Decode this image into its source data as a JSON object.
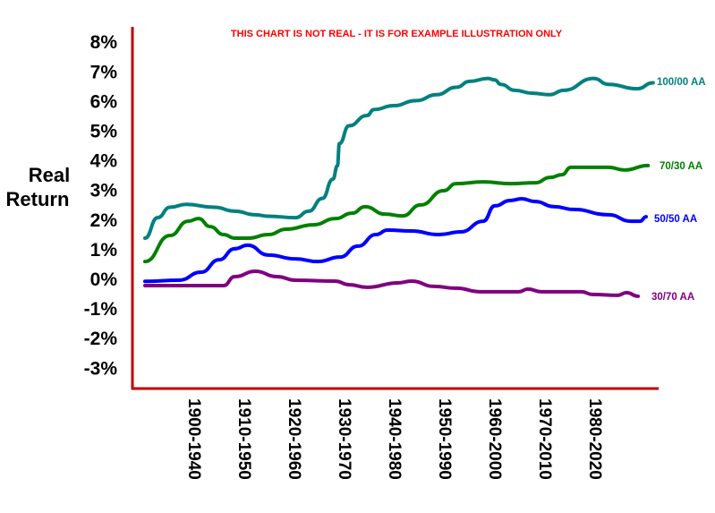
{
  "chart_data": {
    "type": "line",
    "title": "THIS CHART IS NOT REAL - IT IS FOR EXAMPLE ILLUSTRATION ONLY",
    "xlabel": "",
    "ylabel": "Real Return",
    "ylabel_lines": [
      "Real",
      "Return"
    ],
    "categories": [
      "1900-1940",
      "1910-1950",
      "1920-1960",
      "1930-1970",
      "1940-1980",
      "1950-1990",
      "1960-2000",
      "1970-2010",
      "1980-2020"
    ],
    "y_ticks": [
      "8%",
      "7%",
      "6%",
      "5%",
      "4%",
      "3%",
      "2%",
      "1%",
      "0%",
      "-1%",
      "-2%",
      "-3%"
    ],
    "ylim": [
      -3.8,
      8.3
    ],
    "grid": false,
    "legend": "inline-right",
    "axis_color": "#c00000",
    "series": [
      {
        "name": "100/00 AA",
        "color": "#008080",
        "points": [
          [
            -1,
            1.36
          ],
          [
            -0.75,
            2.05
          ],
          [
            -0.5,
            2.4
          ],
          [
            -0.18,
            2.5
          ],
          [
            0.39,
            2.4
          ],
          [
            0.79,
            2.27
          ],
          [
            1.2,
            2.15
          ],
          [
            1.46,
            2.1
          ],
          [
            2,
            2.05
          ],
          [
            2.27,
            2.27
          ],
          [
            2.54,
            2.7
          ],
          [
            2.75,
            3.35
          ],
          [
            2.84,
            3.8
          ],
          [
            2.88,
            4.55
          ],
          [
            3.07,
            5.15
          ],
          [
            3.43,
            5.5
          ],
          [
            3.57,
            5.7
          ],
          [
            3.96,
            5.83
          ],
          [
            4.41,
            6.0
          ],
          [
            4.82,
            6.2
          ],
          [
            5.21,
            6.45
          ],
          [
            5.48,
            6.65
          ],
          [
            5.84,
            6.75
          ],
          [
            5.98,
            6.7
          ],
          [
            6.1,
            6.55
          ],
          [
            6.38,
            6.35
          ],
          [
            6.73,
            6.25
          ],
          [
            7.07,
            6.2
          ],
          [
            7.36,
            6.35
          ],
          [
            7.95,
            6.75
          ],
          [
            8.25,
            6.55
          ],
          [
            8.82,
            6.4
          ],
          [
            9.14,
            6.6
          ]
        ]
      },
      {
        "name": "70/30 AA",
        "color": "#008000",
        "points": [
          [
            -1,
            0.57
          ],
          [
            -0.5,
            1.45
          ],
          [
            -0.14,
            1.93
          ],
          [
            0.07,
            2.02
          ],
          [
            0.3,
            1.75
          ],
          [
            0.57,
            1.48
          ],
          [
            0.79,
            1.36
          ],
          [
            1.07,
            1.36
          ],
          [
            1.46,
            1.48
          ],
          [
            1.82,
            1.66
          ],
          [
            2.36,
            1.81
          ],
          [
            2.8,
            2.02
          ],
          [
            3.13,
            2.2
          ],
          [
            3.39,
            2.42
          ],
          [
            3.79,
            2.17
          ],
          [
            4.14,
            2.11
          ],
          [
            4.5,
            2.48
          ],
          [
            4.96,
            2.96
          ],
          [
            5.21,
            3.2
          ],
          [
            5.75,
            3.26
          ],
          [
            6.29,
            3.2
          ],
          [
            6.79,
            3.23
          ],
          [
            7.09,
            3.41
          ],
          [
            7.32,
            3.5
          ],
          [
            7.5,
            3.75
          ],
          [
            8.25,
            3.75
          ],
          [
            8.57,
            3.66
          ],
          [
            9.04,
            3.81
          ]
        ]
      },
      {
        "name": "50/50 AA",
        "color": "#0000ff",
        "points": [
          [
            -1,
            -0.1
          ],
          [
            -0.32,
            -0.06
          ],
          [
            0.12,
            0.21
          ],
          [
            0.48,
            0.63
          ],
          [
            0.79,
            1.0
          ],
          [
            1.05,
            1.12
          ],
          [
            1.46,
            0.79
          ],
          [
            2,
            0.66
          ],
          [
            2.45,
            0.57
          ],
          [
            2.89,
            0.72
          ],
          [
            3.25,
            1.09
          ],
          [
            3.61,
            1.48
          ],
          [
            3.84,
            1.63
          ],
          [
            4.32,
            1.6
          ],
          [
            4.86,
            1.48
          ],
          [
            5.3,
            1.57
          ],
          [
            5.75,
            1.93
          ],
          [
            5.98,
            2.45
          ],
          [
            6.29,
            2.63
          ],
          [
            6.52,
            2.69
          ],
          [
            6.77,
            2.6
          ],
          [
            7.18,
            2.42
          ],
          [
            7.54,
            2.33
          ],
          [
            8.25,
            2.15
          ],
          [
            8.7,
            1.93
          ],
          [
            8.88,
            1.93
          ],
          [
            9.0,
            2.08
          ]
        ]
      },
      {
        "name": "30/70 AA",
        "color": "#800080",
        "points": [
          [
            -1,
            -0.24
          ],
          [
            0.57,
            -0.24
          ],
          [
            0.79,
            0.06
          ],
          [
            1.2,
            0.24
          ],
          [
            1.64,
            0.06
          ],
          [
            2,
            -0.06
          ],
          [
            2.8,
            -0.09
          ],
          [
            3.07,
            -0.21
          ],
          [
            3.43,
            -0.3
          ],
          [
            4.05,
            -0.15
          ],
          [
            4.32,
            -0.09
          ],
          [
            4.77,
            -0.27
          ],
          [
            5.21,
            -0.33
          ],
          [
            5.7,
            -0.45
          ],
          [
            6.46,
            -0.45
          ],
          [
            6.64,
            -0.36
          ],
          [
            6.91,
            -0.45
          ],
          [
            7.71,
            -0.45
          ],
          [
            7.93,
            -0.54
          ],
          [
            8.43,
            -0.57
          ],
          [
            8.61,
            -0.48
          ],
          [
            8.84,
            -0.6
          ]
        ]
      }
    ]
  }
}
